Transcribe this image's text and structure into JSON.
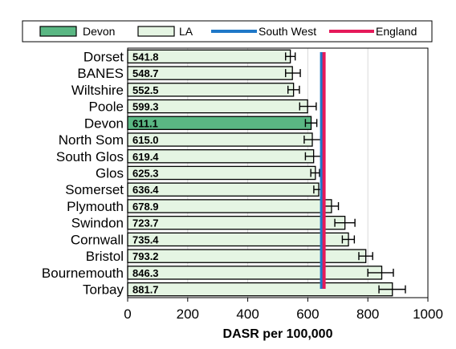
{
  "chart_data": {
    "type": "bar",
    "orientation": "horizontal",
    "categories": [
      "Dorset",
      "BANES",
      "Wiltshire",
      "Poole",
      "Devon",
      "North Som",
      "South Glos",
      "Glos",
      "Somerset",
      "Plymouth",
      "Swindon",
      "Cornwall",
      "Bristol",
      "Bournemouth",
      "Torbay"
    ],
    "values": [
      541.8,
      548.7,
      552.5,
      599.3,
      611.1,
      615.0,
      619.4,
      625.3,
      636.4,
      678.9,
      723.7,
      735.4,
      793.2,
      846.3,
      881.7
    ],
    "value_labels": [
      "541.8",
      "548.7",
      "552.5",
      "599.3",
      "611.1",
      "615.0",
      "619.4",
      "625.3",
      "636.4",
      "678.9",
      "723.7",
      "735.4",
      "793.2",
      "846.3",
      "881.7"
    ],
    "ci_lower": [
      526,
      526,
      534,
      573,
      592,
      588,
      592,
      610,
      620,
      655,
      690,
      715,
      770,
      800,
      837
    ],
    "ci_upper": [
      558,
      575,
      572,
      628,
      630,
      643,
      643,
      639,
      652,
      702,
      757,
      755,
      816,
      885,
      925
    ],
    "highlight_category": "Devon",
    "reference_lines": [
      {
        "name": "South West",
        "value": 650,
        "color": "#1f78c8"
      },
      {
        "name": "England",
        "value": 650,
        "color": "#e5195a"
      }
    ],
    "legend": [
      "Devon",
      "LA",
      "South West",
      "England"
    ],
    "legend_position": "top",
    "xlabel": "DASR per 100,000",
    "ylabel": "",
    "xlim": [
      0,
      1000
    ],
    "x_ticks": [
      0,
      200,
      400,
      600,
      800,
      1000
    ],
    "x_tick_labels": [
      "0",
      "200",
      "400",
      "600",
      "800",
      "1000"
    ],
    "grid": "vertical",
    "colors": {
      "highlight": "#5ab783",
      "bar": "#e5f5e3",
      "bar_border": "#000000"
    }
  }
}
